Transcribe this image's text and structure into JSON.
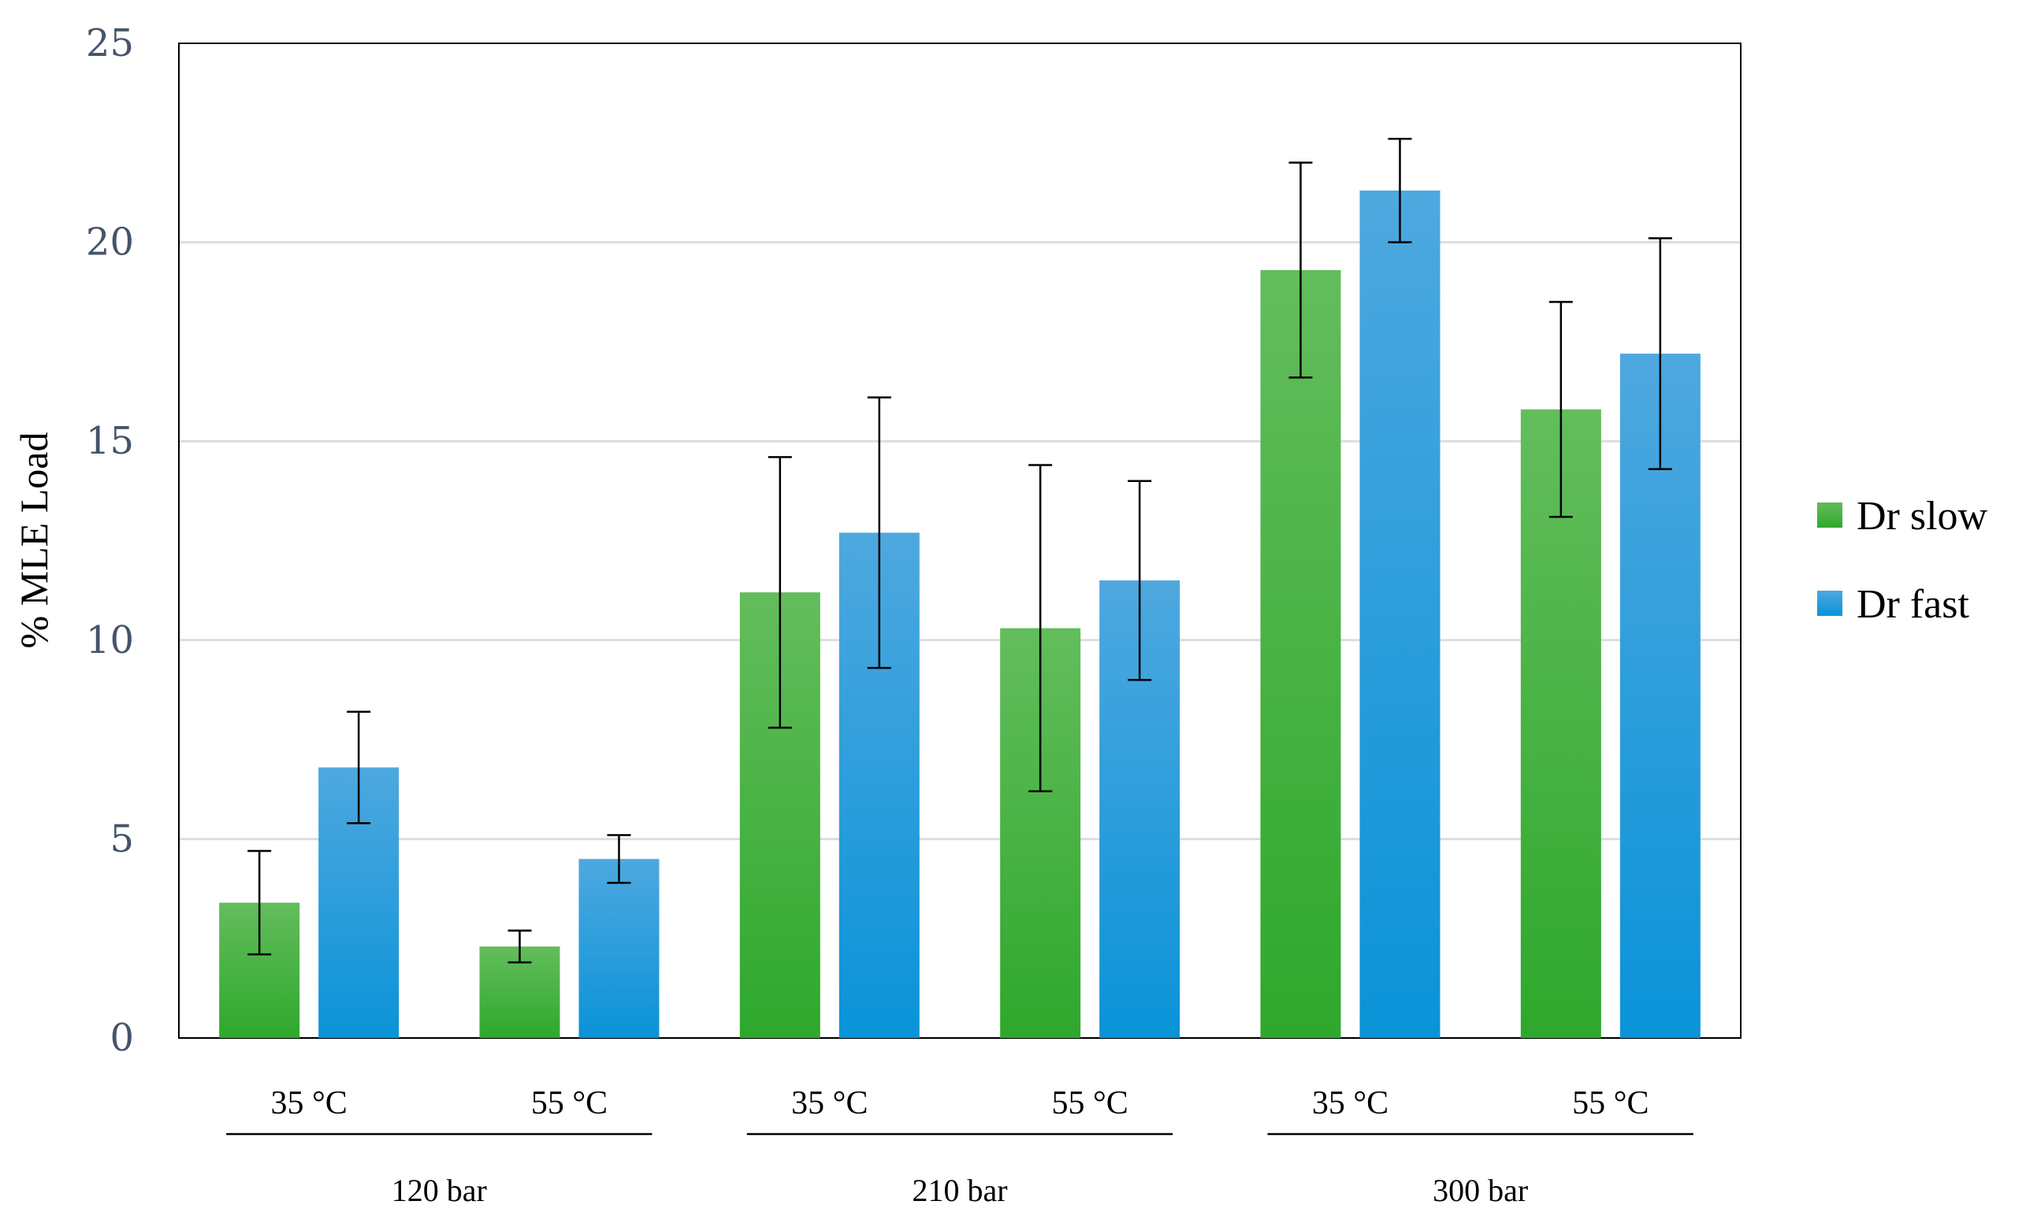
{
  "chart_data": {
    "type": "bar",
    "title": "",
    "xlabel": "",
    "ylabel": "% MLE Load",
    "ylim": [
      0,
      25
    ],
    "yticks": [
      0,
      5,
      10,
      15,
      20,
      25
    ],
    "grid": true,
    "legend_position": "right",
    "categories": [
      "35 °C",
      "55 °C",
      "35 °C",
      "55 °C",
      "35 °C",
      "55 °C"
    ],
    "groups": [
      {
        "label": "120 bar",
        "categories": [
          0,
          1
        ]
      },
      {
        "label": "210 bar",
        "categories": [
          2,
          3
        ]
      },
      {
        "label": "300 bar",
        "categories": [
          4,
          5
        ]
      }
    ],
    "series": [
      {
        "name": "Dr slow",
        "color": "#2ea82c",
        "color_light": "#63bd5c",
        "values": [
          3.4,
          2.3,
          11.2,
          10.3,
          19.3,
          15.8
        ],
        "error_low": [
          2.1,
          1.9,
          7.8,
          6.2,
          16.6,
          13.1
        ],
        "error_high": [
          4.7,
          2.7,
          14.6,
          14.4,
          22.0,
          18.5
        ]
      },
      {
        "name": "Dr fast",
        "color": "#0a93d8",
        "color_light": "#4ea8df",
        "values": [
          6.8,
          4.5,
          12.7,
          11.5,
          21.3,
          17.2
        ],
        "error_low": [
          5.4,
          3.9,
          9.3,
          9.0,
          20.0,
          14.3
        ],
        "error_high": [
          8.2,
          5.1,
          16.1,
          14.0,
          22.6,
          20.1
        ]
      }
    ]
  }
}
